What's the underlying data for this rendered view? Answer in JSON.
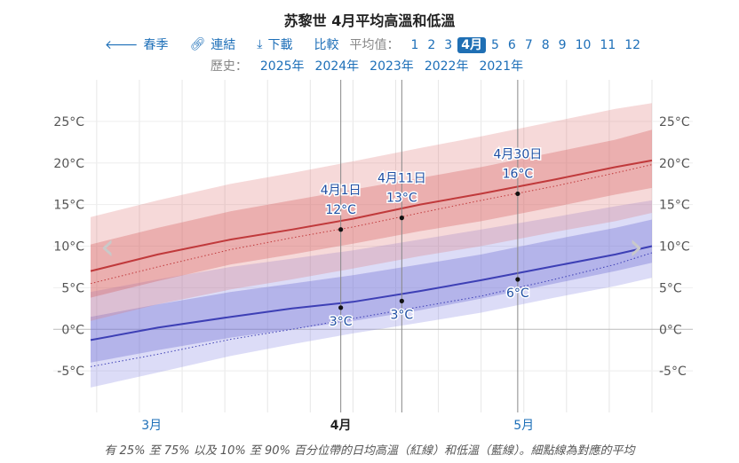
{
  "title": "苏黎世 4月平均高溫和低溫",
  "toolbar": {
    "prev_label": "春季",
    "link_label": "連結",
    "download_label": "下載",
    "compare_label": "比較",
    "avg_label": "平均值：",
    "months": [
      "1",
      "2",
      "3",
      "4月",
      "5",
      "6",
      "7",
      "8",
      "9",
      "10",
      "11",
      "12"
    ],
    "selected_month_index": 3
  },
  "history": {
    "label": "歷史：",
    "years": [
      "2025年",
      "2024年",
      "2023年",
      "2022年",
      "2021年"
    ]
  },
  "footnote": "有 25% 至 75% 以及 10% 至 90% 百分位帶的日均高溫（紅線）和低溫（藍線）。細點線為對應的平均",
  "colors": {
    "high_line": "#c0393b",
    "low_line": "#3d3fb5",
    "link": "#1d6fb8"
  },
  "chart_data": {
    "type": "line",
    "x_unit": "day",
    "x_range": [
      "2月20日",
      "5月23日"
    ],
    "month_ticks": [
      {
        "label": "3月",
        "day": 10,
        "bold": false
      },
      {
        "label": "4月",
        "day": 41,
        "bold": true
      },
      {
        "label": "5月",
        "day": 71,
        "bold": false
      }
    ],
    "ylim": [
      -10,
      30
    ],
    "yticks": [
      -5,
      0,
      5,
      10,
      15,
      20,
      25
    ],
    "ytick_labels": [
      "-5°C",
      "0°C",
      "5°C",
      "10°C",
      "15°C",
      "20°C",
      "25°C"
    ],
    "grid": true,
    "series": [
      {
        "key": "high",
        "days": [
          0,
          11,
          23,
          33,
          43,
          54,
          64,
          76,
          86,
          92
        ],
        "values": [
          7.0,
          9.0,
          10.8,
          12.0,
          13.3,
          15.0,
          16.3,
          18.0,
          19.5,
          20.3
        ],
        "p10": [
          1.0,
          3.0,
          4.8,
          6.0,
          7.3,
          8.8,
          10.0,
          11.7,
          13.0,
          14.0
        ],
        "p25": [
          3.8,
          5.8,
          7.8,
          9.0,
          10.3,
          11.8,
          13.0,
          14.7,
          16.2,
          17.0
        ],
        "p75": [
          10.2,
          12.2,
          14.2,
          15.5,
          16.8,
          18.2,
          19.5,
          21.3,
          22.8,
          24.0
        ],
        "p90": [
          13.5,
          15.5,
          17.5,
          18.8,
          20.2,
          21.8,
          23.2,
          25.0,
          26.5,
          27.2
        ],
        "avg": [
          5.5,
          7.5,
          9.6,
          11.0,
          12.3,
          14.0,
          15.5,
          17.2,
          18.8,
          19.8
        ]
      },
      {
        "key": "low",
        "days": [
          0,
          11,
          23,
          33,
          43,
          54,
          64,
          76,
          86,
          92
        ],
        "values": [
          -1.3,
          0.2,
          1.5,
          2.5,
          3.3,
          4.6,
          5.9,
          7.6,
          9.0,
          10.0
        ],
        "p10": [
          -7.0,
          -5.2,
          -3.2,
          -1.8,
          -0.5,
          0.8,
          2.0,
          3.8,
          5.2,
          6.2
        ],
        "p25": [
          -4.0,
          -2.5,
          -1.0,
          0.0,
          1.0,
          2.3,
          3.7,
          5.5,
          7.0,
          8.0
        ],
        "p75": [
          1.5,
          3.0,
          4.5,
          5.5,
          6.5,
          7.8,
          9.0,
          10.8,
          12.2,
          13.2
        ],
        "p90": [
          4.5,
          6.0,
          7.5,
          8.5,
          9.5,
          10.8,
          12.0,
          13.5,
          14.8,
          15.5
        ],
        "avg": [
          -4.5,
          -3.0,
          -1.2,
          0.0,
          1.3,
          2.7,
          4.0,
          6.0,
          7.8,
          9.2
        ]
      }
    ],
    "annotations": [
      {
        "series": "high",
        "day": 41,
        "date": "4月1日",
        "value": 12,
        "text": "12°C"
      },
      {
        "series": "high",
        "day": 51,
        "date": "4月11日",
        "value": 13.4,
        "text": "13°C"
      },
      {
        "series": "high",
        "day": 70,
        "date": "4月30日",
        "value": 16.3,
        "text": "16°C"
      },
      {
        "series": "low",
        "day": 41,
        "date": "",
        "value": 2.6,
        "text": "3°C"
      },
      {
        "series": "low",
        "day": 51,
        "date": "",
        "value": 3.4,
        "text": "3°C"
      },
      {
        "series": "low",
        "day": 70,
        "date": "",
        "value": 6.0,
        "text": "6°C"
      }
    ]
  }
}
